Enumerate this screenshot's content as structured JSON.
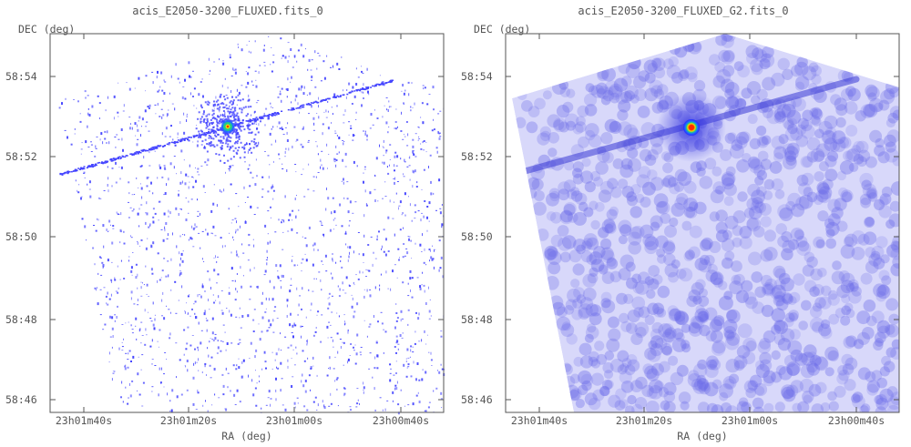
{
  "panels": [
    {
      "title": "acis_E2050-3200_FLUXED.fits_0",
      "style": "points"
    },
    {
      "title": "acis_E2050-3200_FLUXED_G2.fits_0",
      "style": "smoothed"
    }
  ],
  "axes": {
    "xlabel": "RA (deg)",
    "ylabel": "DEC (deg)",
    "xticks": [
      "23h01m40s",
      "23h01m20s",
      "23h01m00s",
      "23h00m40s"
    ],
    "yticks": [
      "58:54",
      "58:52",
      "58:50",
      "58:48",
      "58:46"
    ]
  },
  "colors": {
    "frame": "#555555",
    "points": "#4444ff",
    "smooth": "#6a6ae8",
    "source_core": "#ff2a00",
    "source_ring1": "#ffd400",
    "source_ring2": "#22cc88",
    "source_ring3": "#1e6dff"
  },
  "chart_data": [
    {
      "type": "heatmap",
      "title": "acis_E2050-3200_FLUXED.fits_0",
      "xlabel": "RA (deg)",
      "ylabel": "DEC (deg)",
      "x_ticks": [
        "23h01m40s",
        "23h01m20s",
        "23h01m00s",
        "23h00m40s"
      ],
      "y_ticks": [
        "58:54",
        "58:52",
        "58:50",
        "58:48",
        "58:46"
      ],
      "bright_source": {
        "ra": "23h01m08s",
        "dec": "58:52:45"
      },
      "streak": {
        "from": {
          "ra": "23h01m48s",
          "dec": "58:51:35"
        },
        "to": {
          "ra": "23h00m38s",
          "dec": "58:53:50"
        }
      }
    },
    {
      "type": "heatmap",
      "title": "acis_E2050-3200_FLUXED_G2.fits_0",
      "xlabel": "RA (deg)",
      "ylabel": "DEC (deg)",
      "x_ticks": [
        "23h01m40s",
        "23h01m20s",
        "23h01m00s",
        "23h00m40s"
      ],
      "y_ticks": [
        "58:54",
        "58:52",
        "58:50",
        "58:48",
        "58:46"
      ],
      "bright_source": {
        "ra": "23h01m08s",
        "dec": "58:52:45"
      },
      "streak": {
        "from": {
          "ra": "23h01m48s",
          "dec": "58:51:35"
        },
        "to": {
          "ra": "23h00m38s",
          "dec": "58:53:50"
        }
      }
    }
  ]
}
